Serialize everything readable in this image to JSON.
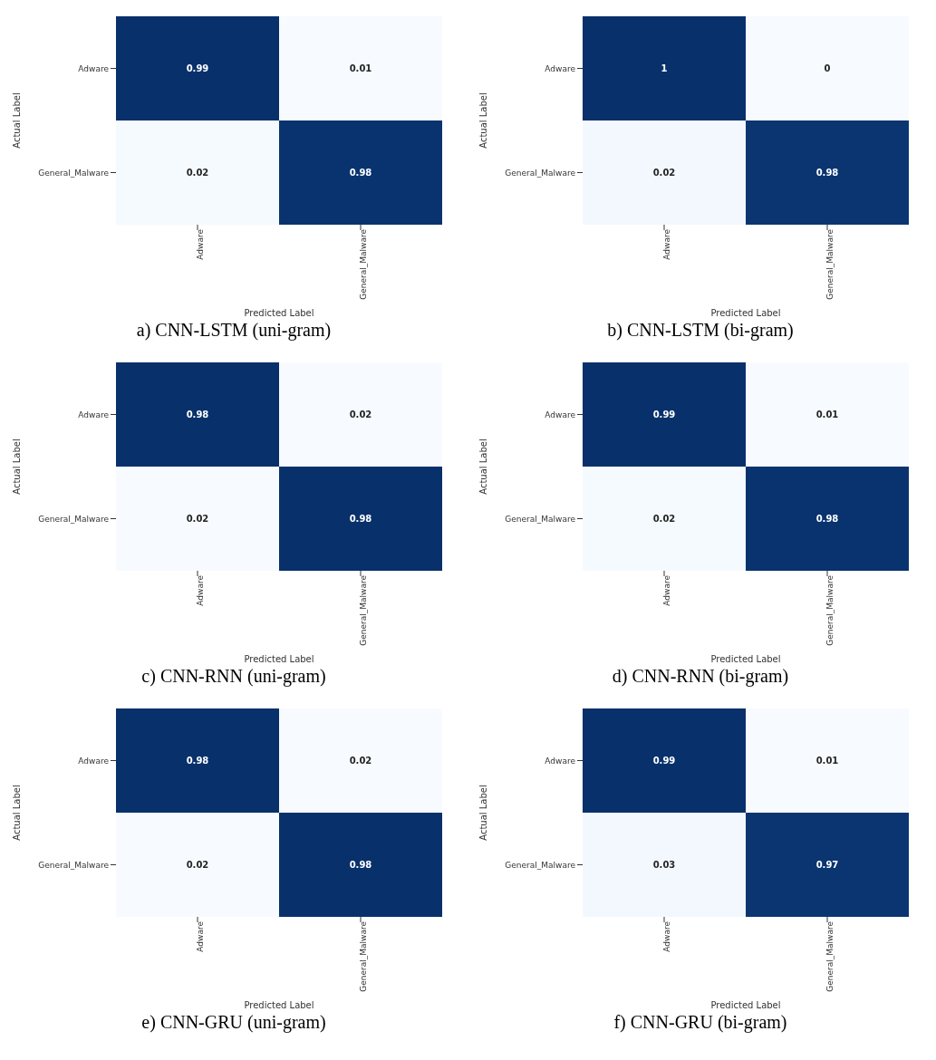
{
  "chart_data": [
    {
      "type": "heatmap",
      "title": "a) CNN-LSTM (uni-gram)",
      "xlabel": "Predicted Label",
      "ylabel": "Actual Label",
      "categories": [
        "Adware",
        "General_Malware"
      ],
      "y_categories": [
        "Adware",
        "General_Malware"
      ],
      "cells": [
        [
          0.99,
          0.01
        ],
        [
          0.02,
          0.98
        ]
      ],
      "data_labels": true
    },
    {
      "type": "heatmap",
      "title": "b) CNN-LSTM (bi-gram)",
      "xlabel": "Predicted Label",
      "ylabel": "Actual Label",
      "categories": [
        "Adware",
        "General_Malware"
      ],
      "y_categories": [
        "Adware",
        "General_Malware"
      ],
      "cells": [
        [
          1,
          0
        ],
        [
          0.02,
          0.98
        ]
      ],
      "data_labels": true
    },
    {
      "type": "heatmap",
      "title": "c) CNN-RNN (uni-gram)",
      "xlabel": "Predicted Label",
      "ylabel": "Actual Label",
      "categories": [
        "Adware",
        "General_Malware"
      ],
      "y_categories": [
        "Adware",
        "General_Malware"
      ],
      "cells": [
        [
          0.98,
          0.02
        ],
        [
          0.02,
          0.98
        ]
      ],
      "data_labels": true
    },
    {
      "type": "heatmap",
      "title": "d) CNN-RNN (bi-gram)",
      "xlabel": "Predicted Label",
      "ylabel": "Actual Label",
      "categories": [
        "Adware",
        "General_Malware"
      ],
      "y_categories": [
        "Adware",
        "General_Malware"
      ],
      "cells": [
        [
          0.99,
          0.01
        ],
        [
          0.02,
          0.98
        ]
      ],
      "data_labels": true
    },
    {
      "type": "heatmap",
      "title": "e) CNN-GRU (uni-gram)",
      "xlabel": "Predicted Label",
      "ylabel": "Actual Label",
      "categories": [
        "Adware",
        "General_Malware"
      ],
      "y_categories": [
        "Adware",
        "General_Malware"
      ],
      "cells": [
        [
          0.98,
          0.02
        ],
        [
          0.02,
          0.98
        ]
      ],
      "data_labels": true
    },
    {
      "type": "heatmap",
      "title": "f) CNN-GRU (bi-gram)",
      "xlabel": "Predicted Label",
      "ylabel": "Actual Label",
      "categories": [
        "Adware",
        "General_Malware"
      ],
      "y_categories": [
        "Adware",
        "General_Malware"
      ],
      "cells": [
        [
          0.99,
          0.01
        ],
        [
          0.03,
          0.97
        ]
      ],
      "data_labels": true
    }
  ]
}
